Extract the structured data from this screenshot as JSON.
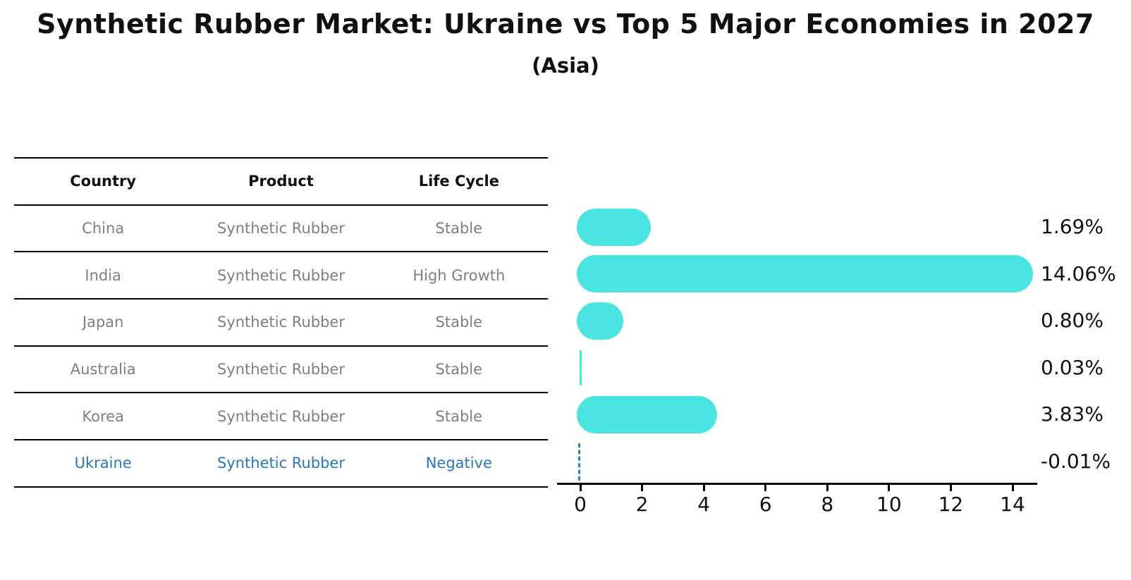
{
  "title": "Synthetic Rubber Market: Ukraine vs Top 5 Major Economies in 2027",
  "subtitle": "(Asia)",
  "table": {
    "headers": [
      "Country",
      "Product",
      "Life Cycle"
    ],
    "rows": [
      {
        "country": "China",
        "product": "Synthetic Rubber",
        "life_cycle": "Stable",
        "highlighted": false
      },
      {
        "country": "India",
        "product": "Synthetic Rubber",
        "life_cycle": "High Growth",
        "highlighted": false
      },
      {
        "country": "Japan",
        "product": "Synthetic Rubber",
        "life_cycle": "Stable",
        "highlighted": false
      },
      {
        "country": "Australia",
        "product": "Synthetic Rubber",
        "life_cycle": "Stable",
        "highlighted": false
      },
      {
        "country": "Korea",
        "product": "Synthetic Rubber",
        "life_cycle": "Stable",
        "highlighted": false
      },
      {
        "country": "Ukraine",
        "product": "Synthetic Rubber",
        "life_cycle": "Negative",
        "highlighted": true
      }
    ]
  },
  "chart_data": {
    "type": "bar",
    "orientation": "horizontal",
    "title": "Synthetic Rubber Market: Ukraine vs Top 5 Major Economies in 2027",
    "subtitle": "(Asia)",
    "categories": [
      "China",
      "India",
      "Japan",
      "Australia",
      "Korea",
      "Ukraine"
    ],
    "values": [
      1.69,
      14.06,
      0.8,
      0.03,
      3.83,
      -0.01
    ],
    "value_labels": [
      "1.69%",
      "14.06%",
      "0.80%",
      "0.03%",
      "3.83%",
      "-0.01%"
    ],
    "x_ticks": [
      0,
      2,
      4,
      6,
      8,
      10,
      12,
      14
    ],
    "xlim": [
      -0.75,
      14.85
    ],
    "grid": false,
    "legend": "none",
    "bar_color": "#4ae5e1",
    "highlight_color": "#2e7fc4",
    "label_color": "#111111",
    "table_text_gray": "#7f7f7f",
    "highlight_text_color": "#2878be"
  }
}
